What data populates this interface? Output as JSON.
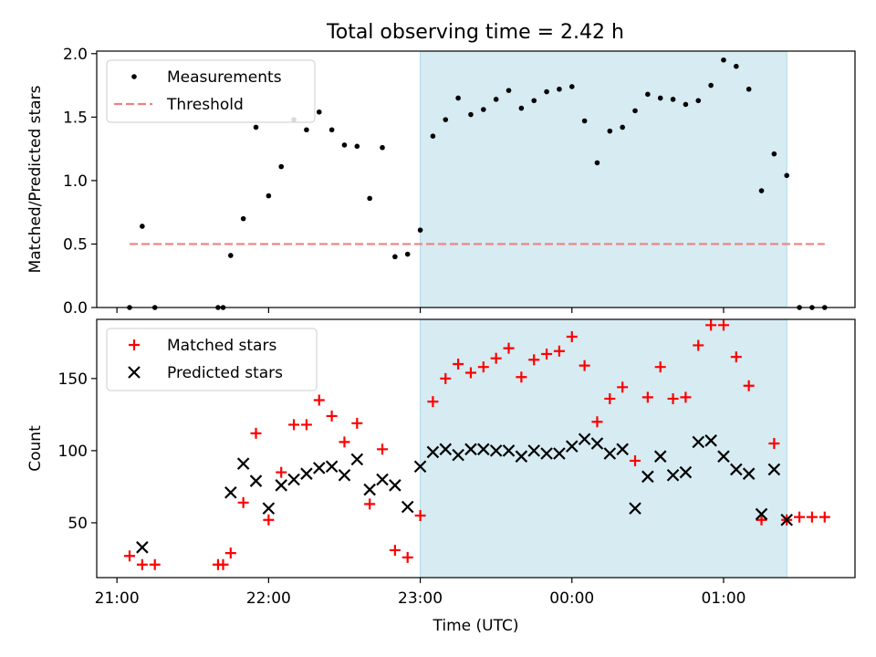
{
  "title": "Total observing time = 2.42 h",
  "chart_data": [
    {
      "type": "scatter",
      "ylabel": "Matched/Predicted stars",
      "ylim": [
        0,
        2.02
      ],
      "xlim": [
        "20:52",
        "25:52"
      ],
      "yticks": [
        "0.0",
        "0.5",
        "1.0",
        "1.5",
        "2.0"
      ],
      "highlight_span": [
        "23:00",
        "25:25"
      ],
      "highlight_color": "#add8e6",
      "legend_placement": "upper-left",
      "series": [
        {
          "name": "Measurements",
          "marker": "dot",
          "color": "#000000",
          "points": [
            [
              "21:05",
              0.0
            ],
            [
              "21:10",
              0.64
            ],
            [
              "21:15",
              0.0
            ],
            [
              "21:40",
              0.0
            ],
            [
              "21:42",
              0.0
            ],
            [
              "21:45",
              0.41
            ],
            [
              "21:50",
              0.7
            ],
            [
              "21:55",
              1.42
            ],
            [
              "22:00",
              0.88
            ],
            [
              "22:05",
              1.11
            ],
            [
              "22:10",
              1.48
            ],
            [
              "22:15",
              1.4
            ],
            [
              "22:20",
              1.54
            ],
            [
              "22:25",
              1.4
            ],
            [
              "22:30",
              1.28
            ],
            [
              "22:35",
              1.27
            ],
            [
              "22:40",
              0.86
            ],
            [
              "22:45",
              1.26
            ],
            [
              "22:50",
              0.4
            ],
            [
              "22:55",
              0.42
            ],
            [
              "23:00",
              0.61
            ],
            [
              "23:05",
              1.35
            ],
            [
              "23:10",
              1.48
            ],
            [
              "23:15",
              1.65
            ],
            [
              "23:20",
              1.52
            ],
            [
              "23:25",
              1.56
            ],
            [
              "23:30",
              1.64
            ],
            [
              "23:35",
              1.71
            ],
            [
              "23:40",
              1.57
            ],
            [
              "23:45",
              1.63
            ],
            [
              "23:50",
              1.7
            ],
            [
              "23:55",
              1.72
            ],
            [
              "24:00",
              1.74
            ],
            [
              "24:05",
              1.47
            ],
            [
              "24:10",
              1.14
            ],
            [
              "24:15",
              1.39
            ],
            [
              "24:20",
              1.42
            ],
            [
              "24:25",
              1.55
            ],
            [
              "24:30",
              1.68
            ],
            [
              "24:35",
              1.65
            ],
            [
              "24:40",
              1.64
            ],
            [
              "24:45",
              1.6
            ],
            [
              "24:50",
              1.63
            ],
            [
              "24:55",
              1.75
            ],
            [
              "25:00",
              1.95
            ],
            [
              "25:05",
              1.9
            ],
            [
              "25:10",
              1.72
            ],
            [
              "25:15",
              0.92
            ],
            [
              "25:20",
              1.21
            ],
            [
              "25:25",
              1.04
            ],
            [
              "25:30",
              0.0
            ],
            [
              "25:35",
              0.0
            ],
            [
              "25:40",
              0.0
            ]
          ]
        },
        {
          "name": "Threshold",
          "marker": "dashed-line",
          "color": "#f08080",
          "points": [
            [
              "21:05",
              0.5
            ],
            [
              "25:40",
              0.5
            ]
          ]
        }
      ]
    },
    {
      "type": "scatter",
      "xlabel": "Time (UTC)",
      "ylabel": "Count",
      "ylim": [
        12,
        191
      ],
      "xlim": [
        "20:52",
        "25:52"
      ],
      "yticks": [
        "50",
        "100",
        "150"
      ],
      "xticks": [
        "21:00",
        "22:00",
        "23:00",
        "00:00",
        "01:00"
      ],
      "highlight_span": [
        "23:00",
        "25:25"
      ],
      "highlight_color": "#add8e6",
      "legend_placement": "upper-left",
      "series": [
        {
          "name": "Matched stars",
          "marker": "plus",
          "color": "#ff0000",
          "points": [
            [
              "21:05",
              27
            ],
            [
              "21:10",
              21
            ],
            [
              "21:15",
              21
            ],
            [
              "21:40",
              21
            ],
            [
              "21:42",
              21
            ],
            [
              "21:45",
              29
            ],
            [
              "21:50",
              64
            ],
            [
              "21:55",
              112
            ],
            [
              "22:00",
              52
            ],
            [
              "22:05",
              85
            ],
            [
              "22:10",
              118
            ],
            [
              "22:15",
              118
            ],
            [
              "22:20",
              135
            ],
            [
              "22:25",
              124
            ],
            [
              "22:30",
              106
            ],
            [
              "22:35",
              119
            ],
            [
              "22:40",
              63
            ],
            [
              "22:45",
              101
            ],
            [
              "22:50",
              31
            ],
            [
              "22:55",
              26
            ],
            [
              "23:00",
              55
            ],
            [
              "23:05",
              134
            ],
            [
              "23:10",
              150
            ],
            [
              "23:15",
              160
            ],
            [
              "23:20",
              154
            ],
            [
              "23:25",
              158
            ],
            [
              "23:30",
              164
            ],
            [
              "23:35",
              171
            ],
            [
              "23:40",
              151
            ],
            [
              "23:45",
              163
            ],
            [
              "23:50",
              167
            ],
            [
              "23:55",
              169
            ],
            [
              "24:00",
              179
            ],
            [
              "24:05",
              159
            ],
            [
              "24:10",
              120
            ],
            [
              "24:15",
              136
            ],
            [
              "24:20",
              144
            ],
            [
              "24:25",
              93
            ],
            [
              "24:30",
              137
            ],
            [
              "24:35",
              158
            ],
            [
              "24:40",
              136
            ],
            [
              "24:45",
              137
            ],
            [
              "24:50",
              173
            ],
            [
              "24:55",
              187
            ],
            [
              "25:00",
              187
            ],
            [
              "25:05",
              165
            ],
            [
              "25:10",
              145
            ],
            [
              "25:15",
              52
            ],
            [
              "25:20",
              105
            ],
            [
              "25:25",
              52
            ],
            [
              "25:30",
              54
            ],
            [
              "25:35",
              54
            ],
            [
              "25:40",
              54
            ]
          ]
        },
        {
          "name": "Predicted stars",
          "marker": "x",
          "color": "#000000",
          "points": [
            [
              "21:10",
              33
            ],
            [
              "21:45",
              71
            ],
            [
              "21:50",
              91
            ],
            [
              "21:55",
              79
            ],
            [
              "22:00",
              60
            ],
            [
              "22:05",
              76
            ],
            [
              "22:10",
              80
            ],
            [
              "22:15",
              84
            ],
            [
              "22:20",
              88
            ],
            [
              "22:25",
              89
            ],
            [
              "22:30",
              83
            ],
            [
              "22:35",
              94
            ],
            [
              "22:40",
              73
            ],
            [
              "22:45",
              80
            ],
            [
              "22:50",
              76
            ],
            [
              "22:55",
              61
            ],
            [
              "23:00",
              89
            ],
            [
              "23:05",
              99
            ],
            [
              "23:10",
              101
            ],
            [
              "23:15",
              97
            ],
            [
              "23:20",
              101
            ],
            [
              "23:25",
              101
            ],
            [
              "23:30",
              100
            ],
            [
              "23:35",
              100
            ],
            [
              "23:40",
              96
            ],
            [
              "23:45",
              100
            ],
            [
              "23:50",
              98
            ],
            [
              "23:55",
              98
            ],
            [
              "24:00",
              103
            ],
            [
              "24:05",
              108
            ],
            [
              "24:10",
              105
            ],
            [
              "24:15",
              98
            ],
            [
              "24:20",
              101
            ],
            [
              "24:25",
              60
            ],
            [
              "24:30",
              82
            ],
            [
              "24:35",
              96
            ],
            [
              "24:40",
              83
            ],
            [
              "24:45",
              85
            ],
            [
              "24:50",
              106
            ],
            [
              "24:55",
              107
            ],
            [
              "25:00",
              96
            ],
            [
              "25:05",
              87
            ],
            [
              "25:10",
              84
            ],
            [
              "25:15",
              56
            ],
            [
              "25:20",
              87
            ],
            [
              "25:25",
              52
            ]
          ]
        }
      ]
    }
  ]
}
